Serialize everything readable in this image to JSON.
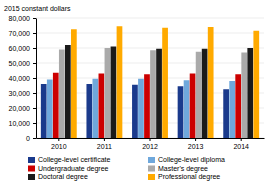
{
  "chart_data": {
    "type": "bar",
    "ylabel": "2015 constant dollars",
    "categories": [
      "2010",
      "2011",
      "2012",
      "2013",
      "2014"
    ],
    "series": [
      {
        "name": "College-level certificate",
        "color": "#1a3a8c",
        "values": [
          36000,
          36000,
          35500,
          34500,
          32500
        ]
      },
      {
        "name": "College-level diploma",
        "color": "#6fa8dc",
        "values": [
          39000,
          39500,
          39500,
          38500,
          38000
        ]
      },
      {
        "name": "Undergraduate degree",
        "color": "#cc0000",
        "values": [
          43500,
          43000,
          42500,
          43000,
          42500
        ]
      },
      {
        "name": "Master's degree",
        "color": "#aaaaaa",
        "values": [
          59000,
          60000,
          58500,
          57500,
          57000
        ]
      },
      {
        "name": "Doctoral degree",
        "color": "#1a1a1a",
        "values": [
          62000,
          61000,
          59500,
          59500,
          60000
        ]
      },
      {
        "name": "Professional degree",
        "color": "#ffaa00",
        "values": [
          72500,
          74500,
          73500,
          74000,
          71500
        ]
      }
    ],
    "ylim": [
      0,
      80000
    ],
    "yticks": [
      0,
      {
        "value": 10000,
        "label": "10,000"
      },
      {
        "value": 20000,
        "label": "20,000"
      },
      {
        "value": 30000,
        "label": "30,000"
      },
      {
        "value": 40000,
        "label": "40,000"
      },
      {
        "value": 50000,
        "label": "50,000"
      },
      {
        "value": 60000,
        "label": "60,000"
      },
      {
        "value": 70000,
        "label": "70,000"
      },
      {
        "value": 80000,
        "label": "80,000"
      }
    ],
    "grid": true,
    "legend": "bottom"
  }
}
